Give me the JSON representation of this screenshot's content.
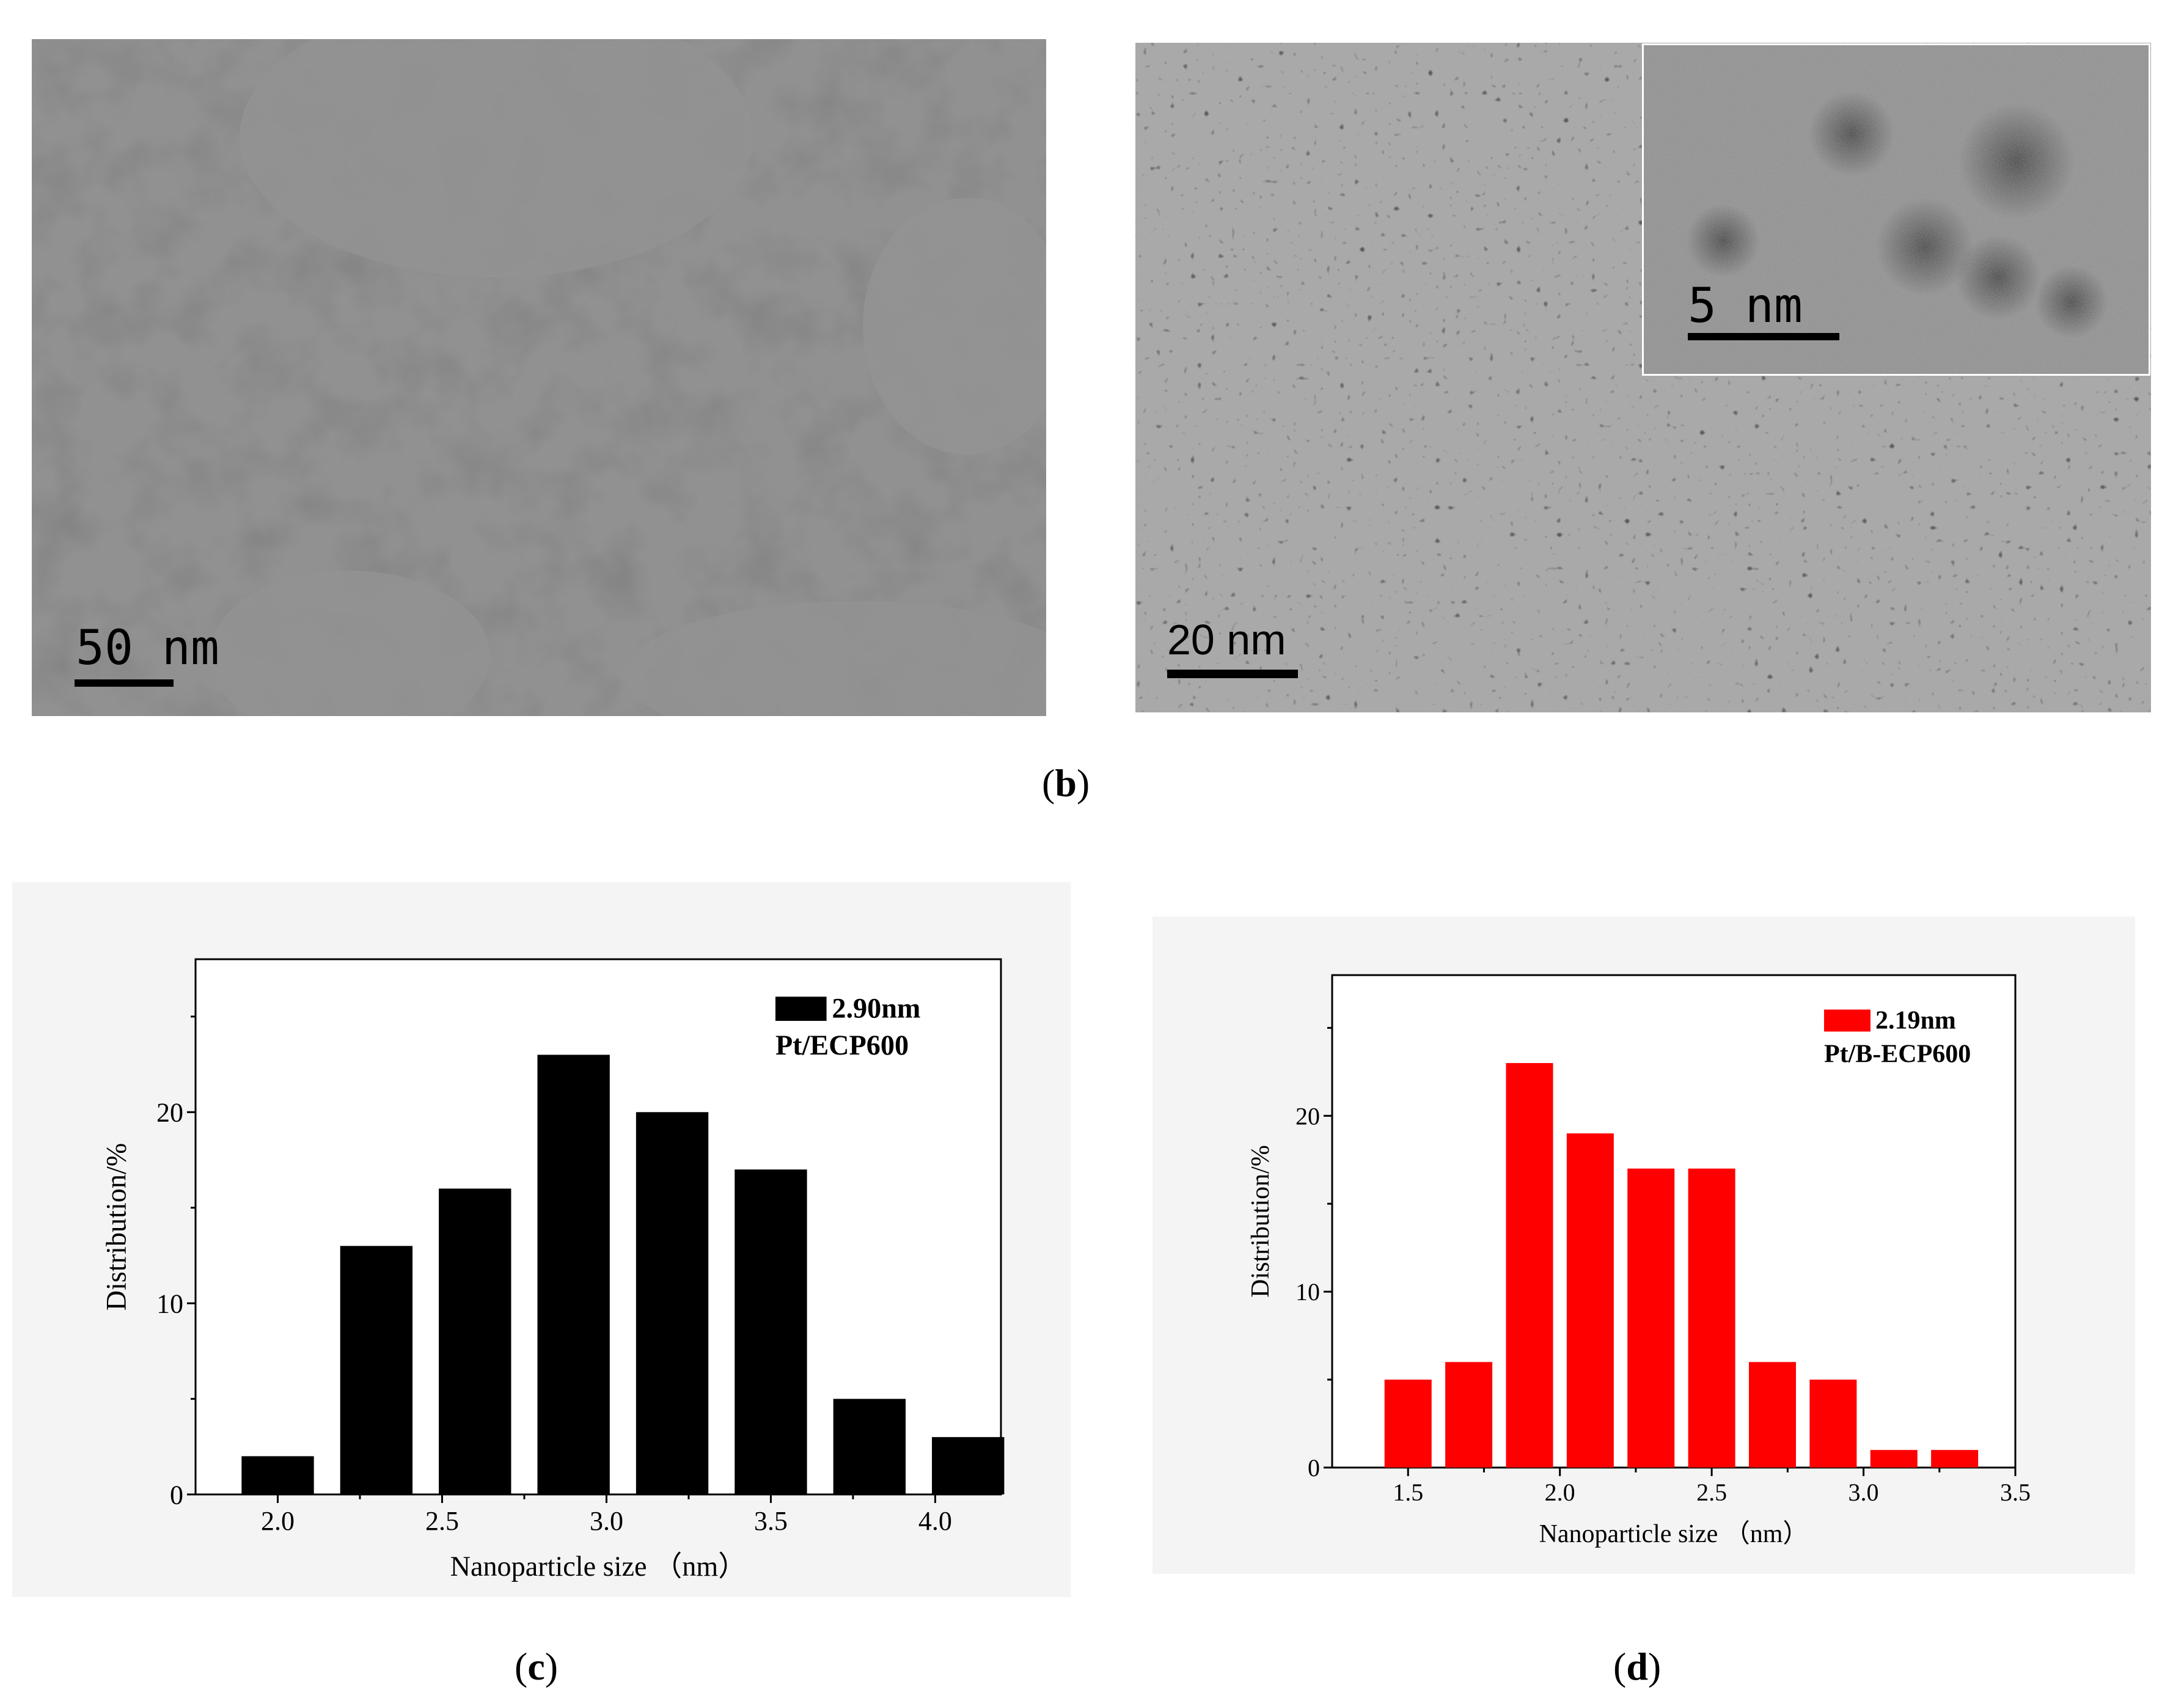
{
  "panel_labels": {
    "b": "b",
    "c": "c",
    "d": "d"
  },
  "tem_left": {
    "scale_label": "50 nm"
  },
  "tem_right": {
    "scale_label": "20 nm",
    "inset_scale_label": "5 nm"
  },
  "colors": {
    "chart_c_bar": "#000000",
    "chart_d_bar": "#ff0000"
  },
  "chart_data": [
    {
      "type": "bar",
      "x": [
        2.0,
        2.3,
        2.6,
        2.9,
        3.2,
        3.5,
        3.8,
        4.1
      ],
      "values": [
        2,
        13,
        16,
        23,
        20,
        17,
        5,
        3
      ],
      "bar_width": 0.22,
      "xlim": [
        1.75,
        4.2
      ],
      "ylim": [
        0,
        28
      ],
      "xticks": [
        2.0,
        2.5,
        3.0,
        3.5,
        4.0
      ],
      "xtick_labels": [
        "2.0",
        "2.5",
        "3.0",
        "3.5",
        "4.0"
      ],
      "yticks": [
        0,
        10,
        20
      ],
      "ytick_labels": [
        "0",
        "10",
        "20"
      ],
      "xlabel": "Nanoparticle size （nm）",
      "ylabel": "Distribution/%",
      "legend": {
        "label": "2.90nm",
        "placement": "top-right"
      },
      "annotation": "Pt/ECP600"
    },
    {
      "type": "bar",
      "x": [
        1.5,
        1.7,
        1.9,
        2.1,
        2.3,
        2.5,
        2.7,
        2.9,
        3.1,
        3.3
      ],
      "values": [
        5,
        6,
        23,
        19,
        17,
        17,
        6,
        5,
        1,
        1
      ],
      "bar_width": 0.155,
      "xlim": [
        1.25,
        3.5
      ],
      "ylim": [
        0,
        28
      ],
      "xticks": [
        1.5,
        2.0,
        2.5,
        3.0,
        3.5
      ],
      "xtick_labels": [
        "1.5",
        "2.0",
        "2.5",
        "3.0",
        "3.5"
      ],
      "yticks": [
        0,
        10,
        20
      ],
      "ytick_labels": [
        "0",
        "10",
        "20"
      ],
      "xlabel": "Nanoparticle size （nm）",
      "ylabel": "Distribution/%",
      "legend": {
        "label": "2.19nm",
        "placement": "top-right"
      },
      "annotation": "Pt/B-ECP600"
    }
  ]
}
